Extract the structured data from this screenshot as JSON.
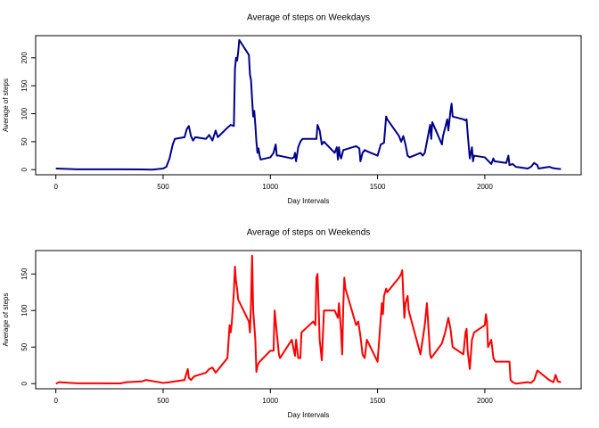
{
  "chart_data": [
    {
      "type": "line",
      "title": "Average of steps on Weekdays",
      "xlabel": "Day Intervals",
      "ylabel": "Average of steps",
      "xlim": [
        -94.2,
        2449.2
      ],
      "xticks": [
        0,
        500,
        1000,
        1500,
        2000
      ],
      "ylim": [
        -9.2,
        239.6
      ],
      "yticks": [
        0,
        50,
        100,
        150,
        200
      ],
      "x": [
        0,
        100,
        200,
        300,
        400,
        450,
        500,
        515,
        530,
        545,
        555,
        600,
        610,
        620,
        630,
        640,
        650,
        700,
        715,
        730,
        745,
        755,
        800,
        815,
        830,
        835,
        840,
        845,
        850,
        855,
        900,
        905,
        910,
        915,
        920,
        925,
        930,
        935,
        940,
        945,
        950,
        955,
        1000,
        1015,
        1020,
        1025,
        1030,
        1040,
        1100,
        1110,
        1115,
        1120,
        1130,
        1140,
        1150,
        1200,
        1215,
        1220,
        1230,
        1240,
        1250,
        1300,
        1310,
        1315,
        1320,
        1325,
        1330,
        1340,
        1400,
        1415,
        1420,
        1430,
        1440,
        1450,
        1500,
        1515,
        1530,
        1540,
        1545,
        1600,
        1610,
        1620,
        1630,
        1640,
        1650,
        1700,
        1710,
        1720,
        1730,
        1740,
        1745,
        1750,
        1755,
        1800,
        1805,
        1815,
        1825,
        1830,
        1840,
        1845,
        1850,
        1900,
        1910,
        1915,
        1920,
        1925,
        1930,
        1940,
        1945,
        1950,
        2000,
        2010,
        2030,
        2040,
        2045,
        2100,
        2110,
        2115,
        2130,
        2145,
        2200,
        2215,
        2230,
        2245,
        2250,
        2300,
        2315,
        2330,
        2355
      ],
      "series": [
        {
          "name": "Weekdays",
          "color": "#00008b",
          "values": [
            2,
            0.5,
            0.5,
            0.5,
            0.3,
            0,
            2,
            5,
            20,
            45,
            55,
            58,
            72,
            78,
            60,
            52,
            58,
            55,
            62,
            52,
            70,
            58,
            75,
            80,
            78,
            180,
            200,
            195,
            210,
            232,
            205,
            170,
            160,
            125,
            95,
            105,
            80,
            50,
            30,
            38,
            25,
            18,
            22,
            30,
            38,
            45,
            25,
            25,
            20,
            22,
            30,
            15,
            40,
            50,
            55,
            55,
            55,
            80,
            70,
            45,
            50,
            30,
            40,
            18,
            40,
            25,
            20,
            35,
            42,
            38,
            15,
            30,
            35,
            33,
            25,
            45,
            48,
            95,
            90,
            60,
            50,
            60,
            45,
            25,
            22,
            30,
            25,
            30,
            50,
            70,
            80,
            55,
            85,
            45,
            60,
            75,
            90,
            70,
            105,
            118,
            95,
            90,
            88,
            90,
            65,
            42,
            20,
            40,
            15,
            25,
            22,
            18,
            10,
            20,
            15,
            12,
            25,
            8,
            10,
            5,
            2,
            5,
            12,
            8,
            2,
            5,
            3,
            2,
            1
          ]
        }
      ]
    },
    {
      "type": "line",
      "title": "Average of steps on Weekends",
      "xlabel": "Day Intervals",
      "ylabel": "Average of steps",
      "xlim": [
        -94.2,
        2449.2
      ],
      "xticks": [
        0,
        500,
        1000,
        1500,
        2000
      ],
      "ylim": [
        -7,
        182
      ],
      "yticks": [
        0,
        50,
        100,
        150
      ],
      "x": [
        0,
        15,
        100,
        200,
        300,
        330,
        400,
        420,
        500,
        530,
        600,
        615,
        620,
        630,
        645,
        700,
        715,
        730,
        745,
        800,
        810,
        815,
        820,
        830,
        835,
        840,
        845,
        850,
        900,
        905,
        910,
        915,
        920,
        930,
        935,
        940,
        950,
        1000,
        1015,
        1020,
        1030,
        1040,
        1045,
        1100,
        1110,
        1115,
        1120,
        1130,
        1140,
        1145,
        1200,
        1210,
        1215,
        1220,
        1230,
        1240,
        1250,
        1300,
        1315,
        1320,
        1330,
        1335,
        1340,
        1345,
        1350,
        1400,
        1410,
        1420,
        1430,
        1440,
        1450,
        1500,
        1510,
        1520,
        1525,
        1530,
        1540,
        1545,
        1600,
        1610,
        1615,
        1620,
        1625,
        1630,
        1640,
        1645,
        1700,
        1710,
        1720,
        1730,
        1745,
        1750,
        1800,
        1815,
        1830,
        1840,
        1850,
        1900,
        1910,
        1915,
        1920,
        1930,
        1940,
        1950,
        2000,
        2005,
        2010,
        2015,
        2030,
        2040,
        2050,
        2100,
        2115,
        2120,
        2130,
        2145,
        2200,
        2215,
        2230,
        2245,
        2300,
        2320,
        2330,
        2340,
        2355
      ],
      "series": [
        {
          "name": "Weekends",
          "color": "#ff0000",
          "values": [
            0,
            2,
            0.5,
            0.5,
            0.3,
            2,
            3,
            5,
            1,
            2,
            5,
            20,
            8,
            5,
            10,
            15,
            20,
            22,
            15,
            35,
            80,
            70,
            82,
            125,
            160,
            140,
            130,
            115,
            85,
            70,
            110,
            175,
            100,
            60,
            16,
            25,
            30,
            45,
            45,
            100,
            70,
            40,
            35,
            60,
            45,
            38,
            60,
            35,
            35,
            70,
            85,
            80,
            145,
            150,
            60,
            32,
            100,
            100,
            90,
            110,
            70,
            40,
            105,
            145,
            130,
            80,
            85,
            65,
            40,
            35,
            60,
            30,
            70,
            110,
            95,
            120,
            130,
            125,
            145,
            150,
            155,
            120,
            90,
            110,
            120,
            100,
            40,
            60,
            80,
            110,
            40,
            35,
            55,
            70,
            90,
            75,
            50,
            40,
            70,
            75,
            45,
            20,
            60,
            70,
            80,
            95,
            85,
            50,
            60,
            35,
            30,
            30,
            30,
            5,
            2,
            0,
            2,
            1,
            5,
            18,
            5,
            2,
            12,
            3,
            2
          ]
        }
      ]
    }
  ]
}
